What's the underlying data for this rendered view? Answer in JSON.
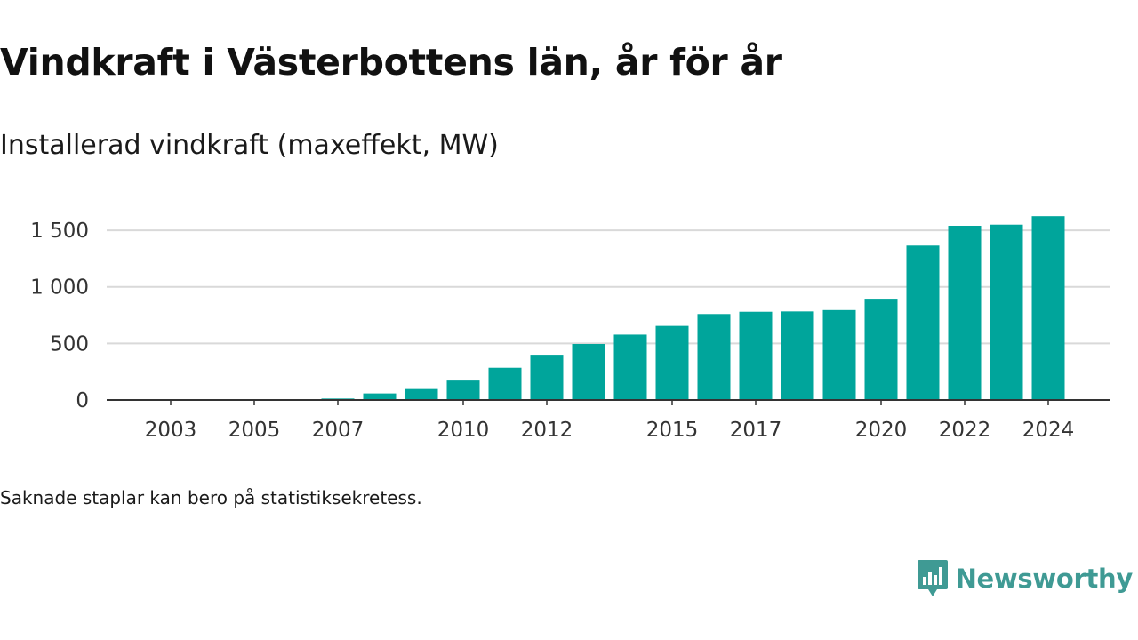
{
  "title": "Vindkraft i Västerbottens län, år för år",
  "subtitle": "Installerad vindkraft (maxeffekt, MW)",
  "note": "Saknade staplar kan bero på statistiksekretess.",
  "brand": {
    "name": "Newsworthy",
    "logo_icon": "bar-chart-speech-bubble-icon",
    "color": "#3f9a94"
  },
  "chart_data": {
    "type": "bar",
    "categories": [
      2003,
      2004,
      2005,
      2006,
      2007,
      2008,
      2009,
      2010,
      2011,
      2012,
      2013,
      2014,
      2015,
      2016,
      2017,
      2018,
      2019,
      2020,
      2021,
      2022,
      2023,
      2024
    ],
    "values": [
      1,
      1,
      2,
      2,
      13,
      58,
      97,
      172,
      285,
      400,
      495,
      578,
      655,
      760,
      780,
      783,
      795,
      895,
      1365,
      1540,
      1550,
      1625
    ],
    "x_tick_labels": [
      "2003",
      "2005",
      "2007",
      "2010",
      "2012",
      "2015",
      "2017",
      "2020",
      "2022",
      "2024"
    ],
    "y_ticks": [
      0,
      500,
      1000,
      1500
    ],
    "y_tick_labels": [
      "0",
      "500",
      "1 000",
      "1 500"
    ],
    "ylim": [
      0,
      1650
    ],
    "grid": true,
    "bar_color": "#00a59b"
  }
}
